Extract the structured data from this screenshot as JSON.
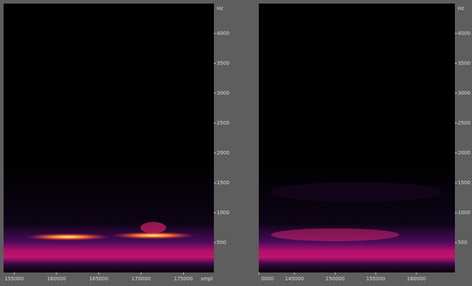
{
  "chart_data": [
    {
      "type": "spectrogram",
      "y_label": "Hz",
      "x_label": "smpl",
      "xlim": [
        153750,
        178600
      ],
      "xticks": [
        155000,
        160000,
        165000,
        170000,
        175000
      ],
      "ylim": [
        0,
        4500
      ],
      "yticks": [
        500,
        1000,
        1500,
        2000,
        2500,
        3000,
        3500,
        4000
      ]
    },
    {
      "type": "spectrogram",
      "y_label": "Hz",
      "xlim": [
        140610,
        164740
      ],
      "xticks": [
        {
          "value": 140000,
          "label": "0000"
        },
        145000,
        150000,
        155000,
        160000
      ],
      "ylim": [
        0,
        4500
      ],
      "yticks": [
        500,
        1000,
        1500,
        2000,
        2500,
        3000,
        3500,
        4000
      ]
    }
  ]
}
